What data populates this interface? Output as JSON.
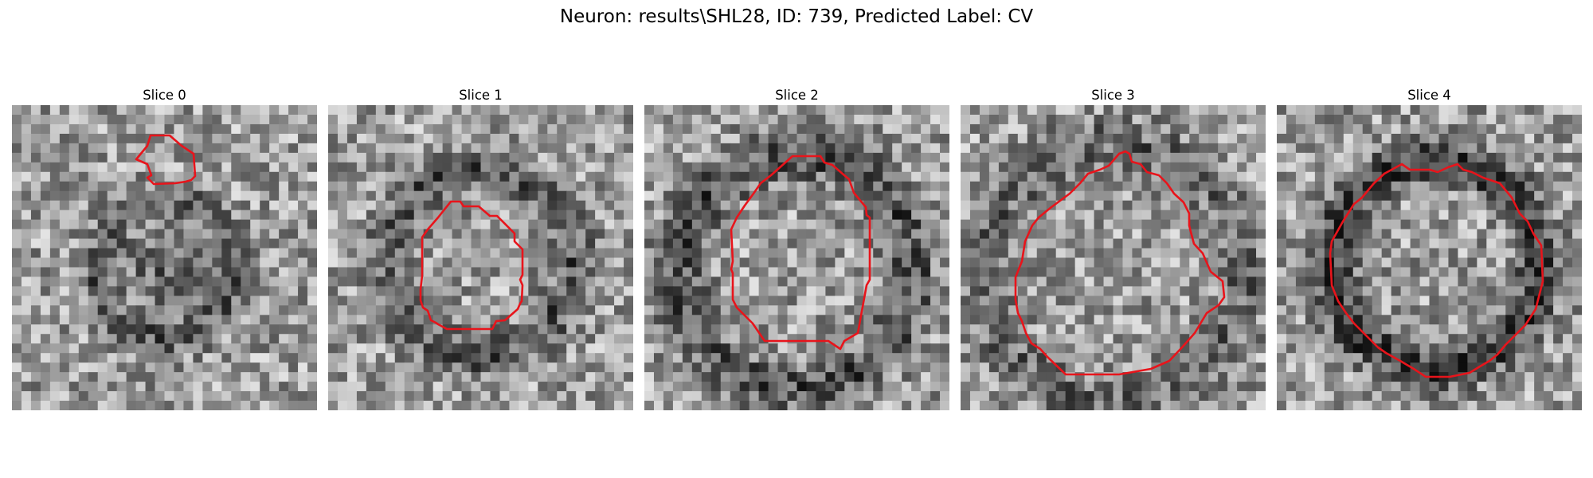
{
  "figure": {
    "suptitle": "Neuron: results\\SHL28, ID: 739, Predicted Label: CV"
  },
  "slices": [
    {
      "title": "Slice 0"
    },
    {
      "title": "Slice 1"
    },
    {
      "title": "Slice 2"
    },
    {
      "title": "Slice 3"
    },
    {
      "title": "Slice 4"
    }
  ],
  "colors": {
    "contour": "#e8141b",
    "colormap": "gray"
  }
}
